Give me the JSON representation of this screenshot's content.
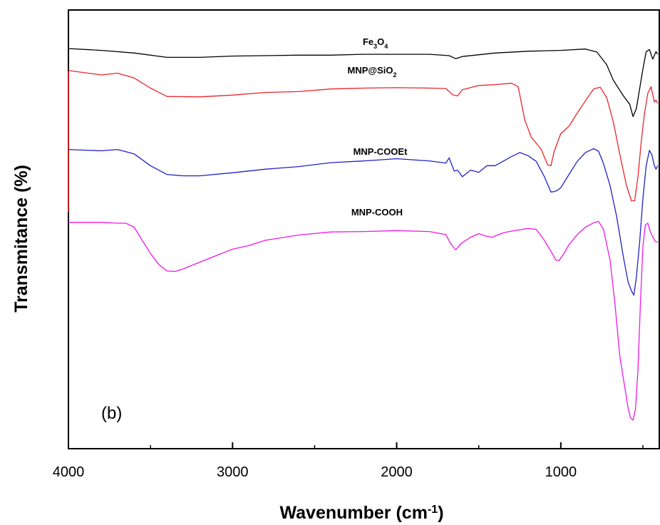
{
  "chart_data": {
    "type": "line",
    "xlabel": "Wavenumber (cm",
    "xlabel_sup": "-1",
    "xlabel_suffix": ")",
    "ylabel": "Transmitance (%)",
    "panel_label": "(b)",
    "x_reversed": true,
    "xlim": [
      4000,
      400
    ],
    "ylim": [
      0,
      100
    ],
    "x_ticks": [
      4000,
      3000,
      2000,
      1000
    ],
    "x_tick_labels": [
      "4000",
      "3000",
      "2000",
      "1000"
    ],
    "y_ticks_labeled": false,
    "grid": false,
    "legend": "none",
    "series": [
      {
        "name": "Fe3O4",
        "label_parts": [
          [
            "Fe",
            ""
          ],
          [
            "3",
            "sub"
          ],
          [
            "O",
            ""
          ],
          [
            "4",
            "sub"
          ]
        ],
        "color": "#000000",
        "label_x": 2130,
        "label_y": 92,
        "x": [
          4000,
          3800,
          3600,
          3400,
          3200,
          3000,
          2800,
          2600,
          2400,
          2200,
          2000,
          1800,
          1680,
          1640,
          1600,
          1400,
          1200,
          1000,
          850,
          780,
          720,
          680,
          620,
          580,
          560,
          540,
          520,
          500,
          480,
          460,
          440,
          420,
          410
        ],
        "y": [
          91.2,
          90.8,
          90.2,
          89.2,
          89.2,
          89.5,
          89.6,
          89.7,
          89.7,
          89.9,
          89.9,
          89.9,
          89.6,
          88.9,
          89.4,
          90.2,
          90.6,
          90.8,
          91.1,
          90.4,
          87.5,
          84,
          80.5,
          78.5,
          75.7,
          77.5,
          82,
          86.5,
          90.5,
          91,
          88.8,
          90.5,
          89.9
        ]
      },
      {
        "name": "MNP@SiO2",
        "label_parts": [
          [
            "MNP@SiO",
            ""
          ],
          [
            "2",
            "sub"
          ]
        ],
        "color": "#e8262a",
        "label_x": 2150,
        "label_y": 85.5,
        "x": [
          4000,
          3800,
          3700,
          3600,
          3500,
          3400,
          3200,
          3000,
          2800,
          2600,
          2400,
          2200,
          2000,
          1800,
          1700,
          1660,
          1630,
          1600,
          1500,
          1400,
          1300,
          1260,
          1220,
          1180,
          1120,
          1080,
          1060,
          1040,
          1000,
          950,
          900,
          850,
          800,
          760,
          720,
          680,
          640,
          600,
          570,
          550,
          530,
          510,
          490,
          470,
          450,
          430,
          420,
          410
        ],
        "y": [
          86.2,
          85.2,
          85.6,
          84.5,
          82.2,
          80.3,
          80.2,
          80.6,
          81.2,
          81.4,
          82,
          82.2,
          82.3,
          82.2,
          82.1,
          80.7,
          80.4,
          81.8,
          82.8,
          83,
          83.3,
          82.5,
          75,
          71,
          68.3,
          64.7,
          64.5,
          67.8,
          71.8,
          73.5,
          76.5,
          79.3,
          82,
          82.4,
          80,
          74.5,
          67,
          60,
          56.5,
          56.5,
          62,
          70,
          76.5,
          81,
          82.5,
          79,
          79.5,
          78.7
        ]
      },
      {
        "name": "MNP-COOEt",
        "label_parts": [
          [
            "MNP-COOEt",
            ""
          ]
        ],
        "color": "#1f22c8",
        "label_x": 2100,
        "label_y": 67,
        "x": [
          4000,
          3800,
          3700,
          3600,
          3500,
          3400,
          3300,
          3200,
          3000,
          2800,
          2600,
          2400,
          2200,
          2000,
          1800,
          1700,
          1680,
          1650,
          1630,
          1600,
          1550,
          1500,
          1450,
          1400,
          1300,
          1250,
          1200,
          1150,
          1100,
          1060,
          1040,
          1020,
          1000,
          950,
          900,
          850,
          800,
          770,
          740,
          700,
          660,
          620,
          590,
          570,
          555,
          540,
          520,
          500,
          480,
          460,
          445,
          430,
          420,
          410
        ],
        "y": [
          68.2,
          67.9,
          68.2,
          67.2,
          64.5,
          62.5,
          62.2,
          62.2,
          62.9,
          63.7,
          64.3,
          65.2,
          65.6,
          66.1,
          65.6,
          65.1,
          66.3,
          63.3,
          63.5,
          62,
          63.5,
          63,
          64.5,
          64.5,
          66.6,
          67.5,
          66.8,
          65.5,
          62,
          58.5,
          58.6,
          58.9,
          59.5,
          62.5,
          65.5,
          67.5,
          68.4,
          67.8,
          65,
          60,
          53,
          44,
          38,
          36,
          35,
          39,
          47,
          57,
          64.5,
          68,
          67,
          64.5,
          63.7,
          64.5
        ]
      },
      {
        "name": "MNP-COOH",
        "label_parts": [
          [
            "MNP-COOH",
            ""
          ]
        ],
        "color": "#ee18e6",
        "label_x": 2120,
        "label_y": 53.2,
        "x": [
          4000,
          3800,
          3700,
          3650,
          3600,
          3550,
          3500,
          3450,
          3400,
          3350,
          3300,
          3200,
          3100,
          3000,
          2900,
          2800,
          2600,
          2400,
          2200,
          2000,
          1800,
          1700,
          1670,
          1640,
          1610,
          1550,
          1500,
          1460,
          1420,
          1350,
          1300,
          1200,
          1150,
          1100,
          1060,
          1030,
          1010,
          980,
          950,
          900,
          850,
          800,
          770,
          740,
          700,
          670,
          640,
          610,
          590,
          575,
          560,
          545,
          530,
          515,
          500,
          485,
          470,
          455,
          440,
          425,
          410
        ],
        "y": [
          51.6,
          51.6,
          51.4,
          51.4,
          50.5,
          47.5,
          44.5,
          42,
          40.5,
          40.4,
          41,
          42.5,
          44,
          45.5,
          46.3,
          47.5,
          48.7,
          49.4,
          49.5,
          49.7,
          49.5,
          48.8,
          46.7,
          45.3,
          46.7,
          48.2,
          49,
          48.5,
          48.2,
          49.2,
          49.6,
          50.2,
          50,
          47.5,
          45,
          43,
          42.9,
          44.5,
          46.5,
          48.8,
          50.5,
          51.5,
          51.8,
          50,
          43,
          33,
          21,
          14,
          9.3,
          7,
          6.5,
          9,
          18,
          33,
          46,
          51,
          51.4,
          49.5,
          48.3,
          47.3,
          47
        ]
      }
    ]
  }
}
